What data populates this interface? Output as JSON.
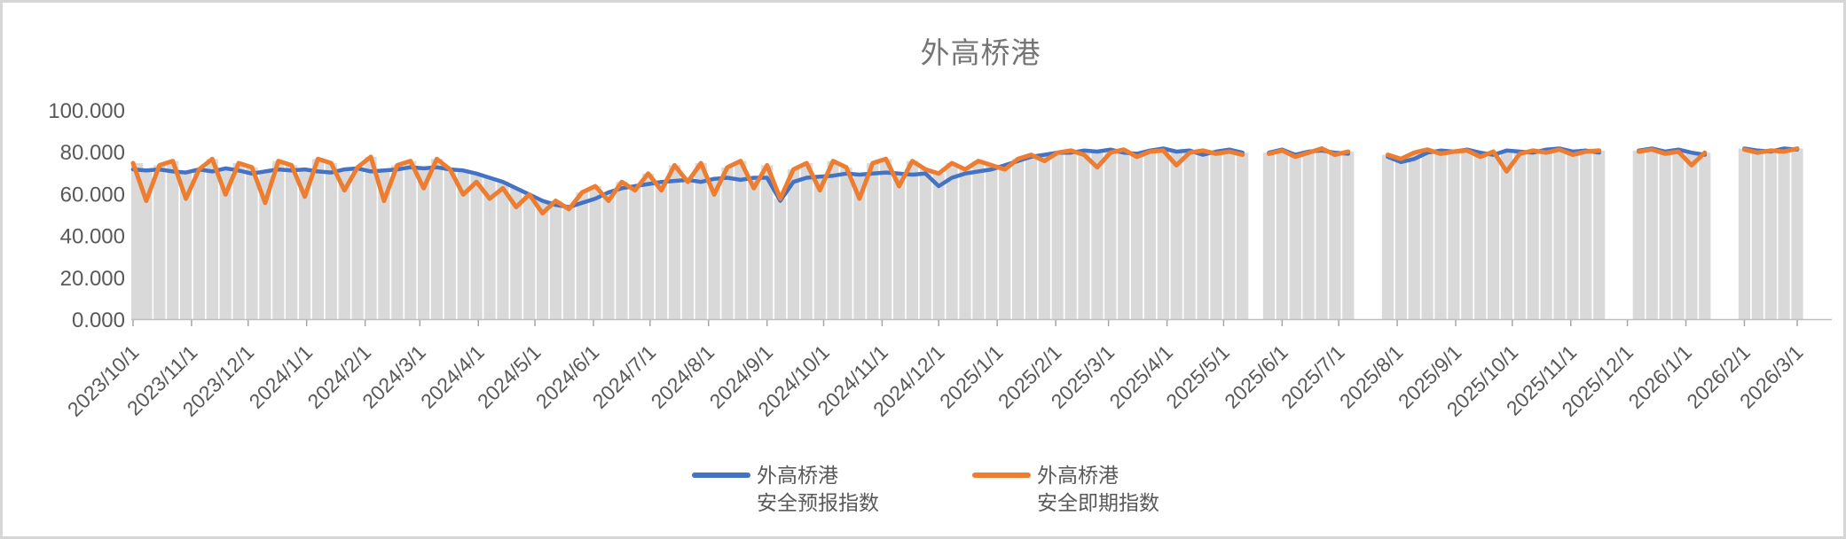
{
  "window": {
    "background": "#ffffff",
    "border_color": "#d6d6d6"
  },
  "chart": {
    "title": "外高桥港",
    "title_color": "#757575",
    "axis_text_color": "#595959",
    "axis_line_color": "#bfbfbf",
    "plot_band_color": "#d9d9d9",
    "legend": {
      "items": [
        {
          "label_line1": "外高桥港",
          "label_line2": "安全预报指数",
          "color": "#4472C4"
        },
        {
          "label_line1": "外高桥港",
          "label_line2": "安全即期指数",
          "color": "#ED7D31"
        }
      ]
    }
  },
  "chart_data": {
    "type": "line",
    "title": "外高桥港",
    "xlabel": "",
    "ylabel": "",
    "ylim": [
      0,
      100
    ],
    "y_tick_labels": [
      "0.000",
      "20.000",
      "40.000",
      "60.000",
      "80.000",
      "100.000"
    ],
    "y_tick_values": [
      0,
      20,
      40,
      60,
      80,
      100
    ],
    "grid": "none",
    "legend_position": "bottom",
    "x_start_date": "2023/10/1",
    "x_interval_days": 7,
    "x_tick_labels": [
      "2023/10/1",
      "2023/11/1",
      "2023/12/1",
      "2024/1/1",
      "2024/2/1",
      "2024/3/1",
      "2024/4/1",
      "2024/5/1",
      "2024/6/1",
      "2024/7/1",
      "2024/8/1",
      "2024/9/1",
      "2024/10/1",
      "2024/11/1",
      "2024/12/1",
      "2025/1/1",
      "2025/2/1",
      "2025/3/1",
      "2025/4/1",
      "2025/5/1",
      "2025/6/1",
      "2025/7/1",
      "2025/8/1",
      "2025/9/1",
      "2025/10/1",
      "2025/11/1",
      "2025/12/1",
      "2026/1/1",
      "2026/2/1",
      "2026/3/1"
    ],
    "background_band": {
      "description": "gray column band under the lines, top follows the series level, white gaps where data is missing",
      "color": "#d9d9d9"
    },
    "series": [
      {
        "name": "外高桥港 安全预报指数",
        "color": "#4472C4",
        "values": [
          72,
          71.5,
          72,
          71,
          70.5,
          72,
          71,
          72.5,
          71.5,
          70,
          71,
          72,
          71.5,
          72,
          71,
          70.5,
          72,
          72.5,
          71,
          71.5,
          72,
          73,
          72.5,
          73,
          72,
          71.5,
          70,
          68,
          66,
          63,
          60,
          57,
          55,
          54,
          56,
          58,
          61,
          63,
          64,
          65,
          66,
          66.5,
          67,
          66,
          67.5,
          68,
          67,
          68,
          68,
          57,
          66,
          68,
          68.5,
          69,
          70,
          69.5,
          70,
          70.5,
          70,
          69.5,
          70,
          64,
          68,
          70,
          71,
          72,
          74,
          76,
          78,
          79,
          80,
          80,
          81,
          80.5,
          81.5,
          80,
          79.5,
          81,
          82,
          80.5,
          81,
          79,
          80.5,
          81.5,
          80,
          null,
          80,
          81.5,
          79,
          80.5,
          81,
          80,
          79.5,
          null,
          null,
          78,
          75.5,
          77,
          80,
          81,
          80.5,
          81.5,
          80,
          79,
          81,
          80.5,
          80,
          81.5,
          82,
          80.5,
          81,
          80,
          null,
          null,
          81,
          82,
          80.5,
          81.5,
          80,
          79,
          null,
          null,
          82,
          81,
          80.5,
          82,
          81.5
        ]
      },
      {
        "name": "外高桥港 安全即期指数",
        "color": "#ED7D31",
        "values": [
          75,
          57,
          74,
          76,
          58,
          72,
          77,
          60,
          75,
          73,
          56,
          76,
          74,
          59,
          77,
          75,
          62,
          73,
          78,
          57,
          74,
          76,
          63,
          77,
          72,
          60,
          66,
          58,
          63,
          54,
          60,
          51,
          57,
          53,
          61,
          64,
          57,
          66,
          62,
          70,
          62,
          74,
          66,
          75,
          60,
          73,
          76,
          63,
          74,
          58,
          72,
          75,
          62,
          76,
          73,
          58,
          75,
          77,
          64,
          76,
          72,
          70,
          75,
          72,
          76,
          74,
          72,
          77,
          79,
          76,
          80,
          81,
          79,
          73,
          80,
          81.5,
          78,
          80.5,
          81,
          74,
          80,
          81,
          79.5,
          80.5,
          79,
          null,
          79.5,
          81,
          78,
          80,
          82,
          79,
          80.5,
          null,
          null,
          79,
          77,
          80,
          81.5,
          79.5,
          80.5,
          81,
          78,
          80.5,
          71,
          79.5,
          81,
          80,
          81.5,
          79,
          80.5,
          81,
          null,
          null,
          80.5,
          81.5,
          79.5,
          80.5,
          74,
          80,
          null,
          null,
          81.5,
          80,
          81,
          80.5,
          82
        ]
      }
    ]
  }
}
